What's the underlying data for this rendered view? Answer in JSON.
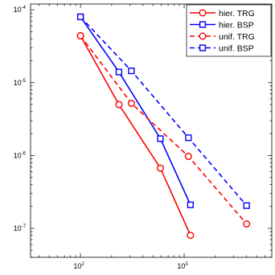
{
  "chart_data": {
    "type": "line",
    "title": "",
    "xlabel": "",
    "ylabel": "",
    "xscale": "log",
    "yscale": "log",
    "xlim": [
      33,
      7000
    ],
    "ylim": [
      4e-08,
      0.00012
    ],
    "x_ticks": [
      {
        "value": 100,
        "base": "10",
        "exp": "2"
      },
      {
        "value": 1000,
        "base": "10",
        "exp": "3"
      }
    ],
    "y_ticks": [
      {
        "value": 1e-07,
        "base": "10",
        "exp": "-7"
      },
      {
        "value": 1e-06,
        "base": "10",
        "exp": "-6"
      },
      {
        "value": 1e-05,
        "base": "10",
        "exp": "-5"
      },
      {
        "value": 0.0001,
        "base": "10",
        "exp": "-4"
      }
    ],
    "grid": false,
    "legend_position": "top-right",
    "series": [
      {
        "name": "hier. TRG",
        "color": "#ff0000",
        "dash": "solid",
        "marker": "circle",
        "x": [
          100,
          235,
          590,
          1150
        ],
        "y": [
          4.4e-05,
          5e-06,
          6.7e-07,
          8e-08
        ]
      },
      {
        "name": "hier. BSP",
        "color": "#0000ff",
        "dash": "solid",
        "marker": "square",
        "x": [
          100,
          235,
          590,
          1150
        ],
        "y": [
          8e-05,
          1.4e-05,
          1.7e-06,
          2.1e-07
        ]
      },
      {
        "name": "unif. TRG",
        "color": "#ff0000",
        "dash": "dashed",
        "marker": "circle",
        "x": [
          100,
          310,
          1100,
          4000
        ],
        "y": [
          4.4e-05,
          5.2e-06,
          9.7e-07,
          1.15e-07
        ]
      },
      {
        "name": "unif. BSP",
        "color": "#0000ff",
        "dash": "dashed",
        "marker": "square",
        "x": [
          100,
          310,
          1100,
          4000
        ],
        "y": [
          8e-05,
          1.45e-05,
          1.75e-06,
          2.05e-07
        ]
      }
    ]
  }
}
